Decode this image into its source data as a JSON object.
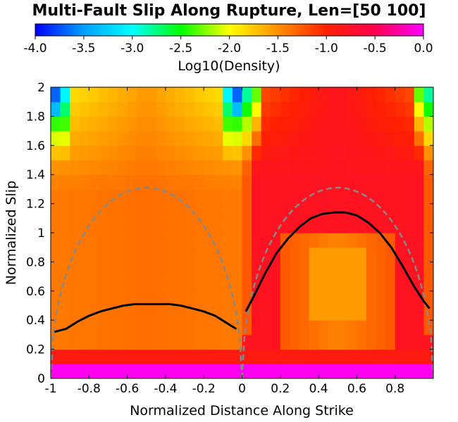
{
  "chart_data": {
    "type": "heatmap",
    "title": "Multi-Fault Slip Along Rupture, Len=[50 100]",
    "colorbar": {
      "label": "Log10(Density)",
      "range": [
        -4.0,
        0.0
      ],
      "tick_labels": [
        "-4.0",
        "-3.5",
        "-3.0",
        "-2.5",
        "-2.0",
        "-1.5",
        "-1.0",
        "-0.5",
        "0.0"
      ],
      "colors": [
        "#0000ff",
        "#00ffff",
        "#00ff00",
        "#ffff00",
        "#ff8000",
        "#ff0000",
        "#ff00ff"
      ]
    },
    "xlabel": "Normalized Distance Along Strike",
    "ylabel": "Normalized Slip",
    "xlim": [
      -1,
      1
    ],
    "ylim": [
      0,
      2
    ],
    "x_tick_labels": [
      "-1",
      "-0.8",
      "-0.6",
      "-0.4",
      "-0.2",
      "0",
      "0.2",
      "0.4",
      "0.6",
      "0.8"
    ],
    "y_tick_labels": [
      "0",
      "0.2",
      "0.4",
      "0.6",
      "0.8",
      "1",
      "1.2",
      "1.4",
      "1.6",
      "1.8",
      "2"
    ],
    "mean_curve_left": {
      "x": [
        -0.98,
        -0.92,
        -0.86,
        -0.8,
        -0.74,
        -0.68,
        -0.62,
        -0.56,
        -0.5,
        -0.44,
        -0.38,
        -0.32,
        -0.26,
        -0.2,
        -0.14,
        -0.08,
        -0.03
      ],
      "y": [
        0.32,
        0.34,
        0.39,
        0.43,
        0.46,
        0.48,
        0.5,
        0.51,
        0.51,
        0.51,
        0.51,
        0.5,
        0.48,
        0.46,
        0.43,
        0.38,
        0.34
      ]
    },
    "mean_curve_right": {
      "x": [
        0.02,
        0.06,
        0.12,
        0.18,
        0.24,
        0.3,
        0.36,
        0.42,
        0.48,
        0.54,
        0.6,
        0.66,
        0.72,
        0.78,
        0.84,
        0.9,
        0.95,
        0.98
      ],
      "y": [
        0.46,
        0.56,
        0.72,
        0.86,
        0.96,
        1.04,
        1.1,
        1.13,
        1.14,
        1.14,
        1.12,
        1.07,
        1.0,
        0.9,
        0.77,
        0.63,
        0.53,
        0.48
      ]
    },
    "reference_curve": {
      "type": "half-ellipse per segment",
      "segments": [
        [
          -1,
          0
        ],
        [
          0,
          1
        ]
      ],
      "peak": 1.31
    },
    "density_grid": {
      "rows": 20,
      "cols": 40,
      "y_range": [
        0,
        2
      ],
      "x_range": [
        -1,
        1
      ],
      "description": "log10 density per cell"
    },
    "grid": false
  }
}
